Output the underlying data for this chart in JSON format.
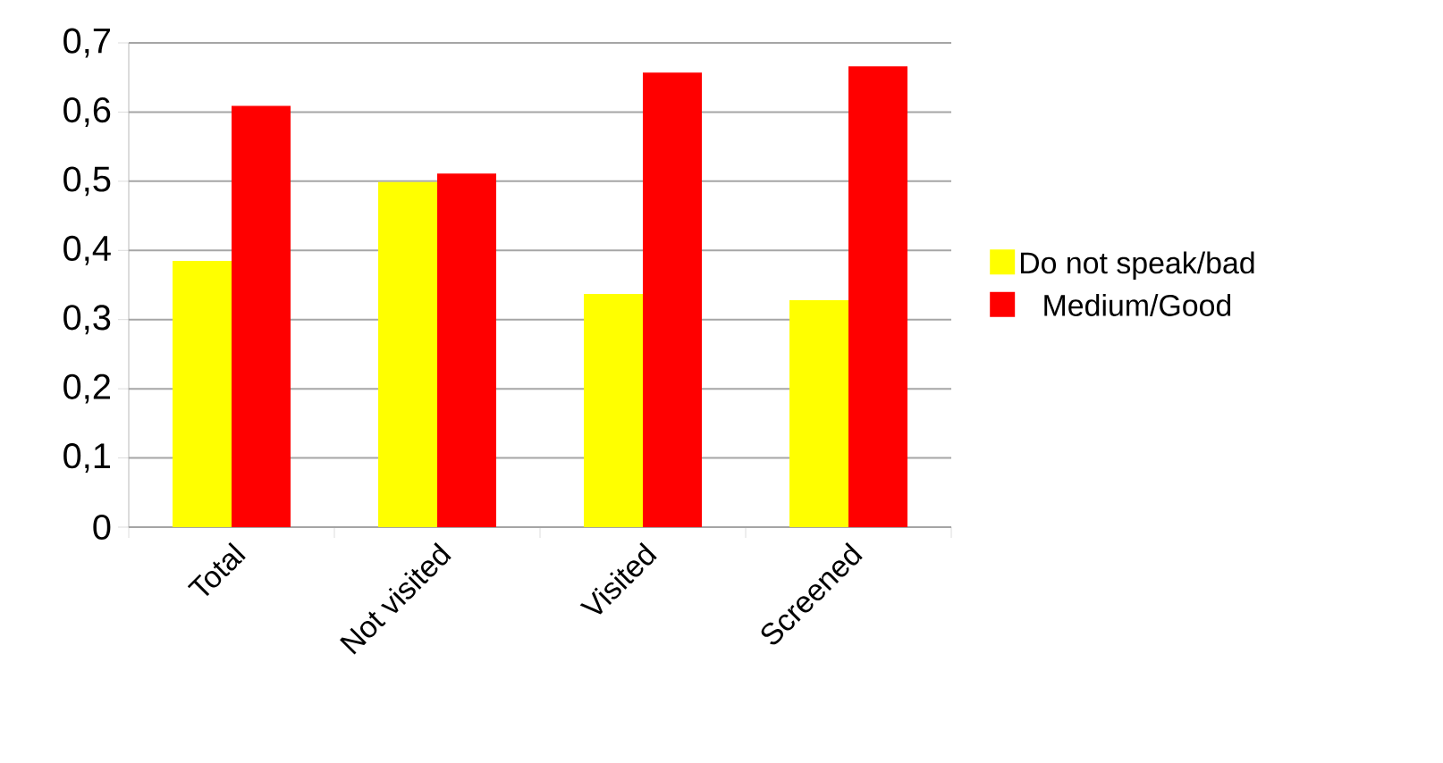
{
  "chart_data": {
    "type": "bar",
    "categories": [
      "Total",
      "Not visited",
      "Visited",
      "Screened"
    ],
    "series": [
      {
        "name": "Do not speak/bad",
        "color": "#ffff00",
        "values": [
          0.385,
          0.499,
          0.337,
          0.328
        ]
      },
      {
        "name": "Medium/Good",
        "color": "#ff0000",
        "values": [
          0.609,
          0.511,
          0.657,
          0.666
        ]
      }
    ],
    "ylim": [
      0,
      0.7
    ],
    "yticks": [
      {
        "value": 0,
        "label": "0"
      },
      {
        "value": 0.1,
        "label": "0,1"
      },
      {
        "value": 0.2,
        "label": "0,2"
      },
      {
        "value": 0.3,
        "label": "0,3"
      },
      {
        "value": 0.4,
        "label": "0,4"
      },
      {
        "value": 0.5,
        "label": "0,5"
      },
      {
        "value": 0.6,
        "label": "0,6"
      },
      {
        "value": 0.7,
        "label": "0,7"
      }
    ],
    "grid": "y",
    "legend": "right"
  }
}
